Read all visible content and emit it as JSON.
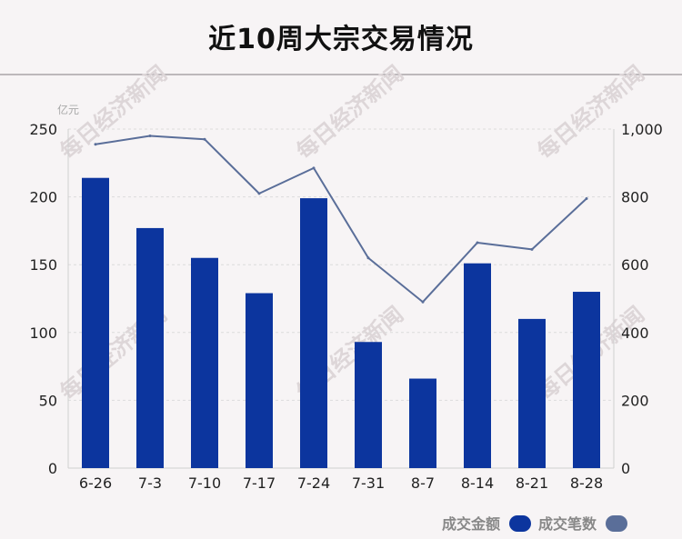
{
  "title": "近10周大宗交易情况",
  "watermark": "每日经济新闻",
  "colors": {
    "bar": "#0c359e",
    "line": "#5a6e99",
    "grid": "#dcdcdc",
    "axis": "#cfcfcf"
  },
  "chart_data": {
    "type": "bar",
    "title": "近10周大宗交易情况",
    "categories": [
      "6-26",
      "7-3",
      "7-10",
      "7-17",
      "7-24",
      "7-31",
      "8-7",
      "8-14",
      "8-21",
      "8-28"
    ],
    "y_left": {
      "unit": "亿元",
      "ylim": [
        0,
        250
      ],
      "ticks": [
        "0",
        "50",
        "100",
        "150",
        "200",
        "250"
      ]
    },
    "y_right": {
      "ylim": [
        0,
        1000
      ],
      "ticks": [
        "0",
        "200",
        "400",
        "600",
        "800",
        "1,000"
      ]
    },
    "series": [
      {
        "name": "成交金额",
        "type": "bar",
        "axis": "left",
        "values": [
          214,
          177,
          155,
          129,
          199,
          93,
          66,
          151,
          110,
          130
        ]
      },
      {
        "name": "成交笔数",
        "type": "line",
        "axis": "right",
        "values": [
          955,
          980,
          970,
          810,
          885,
          620,
          490,
          665,
          645,
          795
        ]
      }
    ],
    "grid": true,
    "legend": "bottom-right"
  }
}
